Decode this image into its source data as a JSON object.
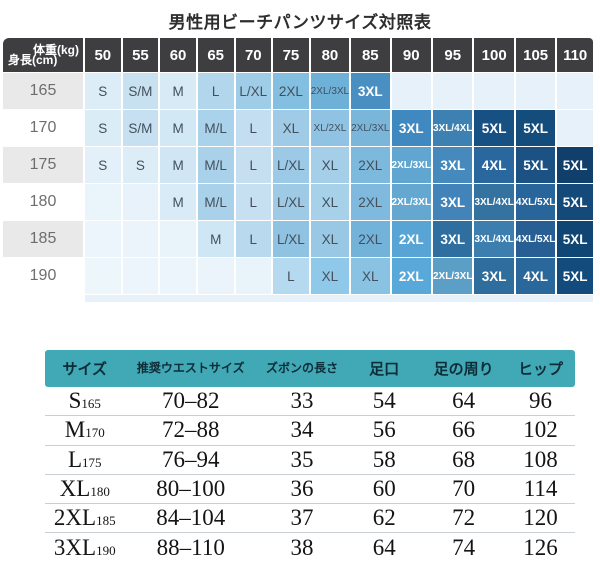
{
  "title": "男性用ビーチパンツサイズ対照表",
  "colors": {
    "header_dark": "#3e3e40",
    "label_alt": "#e9e9e9",
    "teal": "#41a8b5",
    "empty_cell": "#e6f1f9"
  },
  "chart_data": [
    {
      "type": "heatmap",
      "title": "男性用ビーチパンツサイズ対照表",
      "x_label": "体重(kg)",
      "y_label": "身長(cm)",
      "x_ticks": [
        "50",
        "55",
        "60",
        "65",
        "70",
        "75",
        "80",
        "85",
        "90",
        "95",
        "100",
        "105",
        "110"
      ],
      "y_ticks": [
        "165",
        "170",
        "175",
        "180",
        "185",
        "190"
      ],
      "legend": "cell value = recommended size, cell color = light blue (small) to dark navy (large)",
      "cells": [
        [
          [
            "S",
            "#dcedf7",
            "d"
          ],
          [
            "S/M",
            "#c8e1f1",
            "d"
          ],
          [
            "M",
            "#d7eaf6",
            "d"
          ],
          [
            "L",
            "#b2d6ec",
            "d"
          ],
          [
            "L/XL",
            "#9fcce7",
            "d"
          ],
          [
            "2XL",
            "#83bfe0",
            "d"
          ],
          [
            "2XL/3XL",
            "#6db0d8",
            "d"
          ],
          [
            "3XL",
            "#4a8fc2",
            "w"
          ],
          [
            "",
            "#e6f1f9",
            "d"
          ],
          [
            "",
            "#e6f1f9",
            "d"
          ],
          [
            "",
            "#e6f1f9",
            "d"
          ],
          [
            "",
            "#e6f1f9",
            "d"
          ],
          [
            "",
            "#e6f1f9",
            "d"
          ]
        ],
        [
          [
            "S",
            "#daecf6",
            "d"
          ],
          [
            "S/M",
            "#c6e0f1",
            "d"
          ],
          [
            "M",
            "#d3e8f5",
            "d"
          ],
          [
            "M/L",
            "#aad2ea",
            "d"
          ],
          [
            "L",
            "#c2def0",
            "d"
          ],
          [
            "XL",
            "#9fcbe7",
            "d"
          ],
          [
            "XL/2XL",
            "#90c3e3",
            "d"
          ],
          [
            "2XL/3XL",
            "#7ab5da",
            "d"
          ],
          [
            "3XL",
            "#3f88c0",
            "w"
          ],
          [
            "3XL/4XL",
            "#3d80b2",
            "w"
          ],
          [
            "5XL",
            "#175083",
            "w"
          ],
          [
            "5XL",
            "#144c7c",
            "w"
          ],
          [
            "",
            "#e6f1f9",
            "d"
          ]
        ],
        [
          [
            "S",
            "#e3f0f9",
            "d"
          ],
          [
            "S",
            "#ddedf7",
            "d"
          ],
          [
            "M",
            "#d0e6f4",
            "d"
          ],
          [
            "M/L",
            "#a9d1e9",
            "d"
          ],
          [
            "L",
            "#c5dff1",
            "d"
          ],
          [
            "L/XL",
            "#9cc9e6",
            "d"
          ],
          [
            "XL",
            "#a5cfe9",
            "d"
          ],
          [
            "2XL",
            "#7db9dd",
            "d"
          ],
          [
            "2XL/3XL",
            "#61a6d1",
            "w"
          ],
          [
            "3XL",
            "#4689bd",
            "w"
          ],
          [
            "4XL",
            "#29679e",
            "w"
          ],
          [
            "5XL",
            "#1b5283",
            "w"
          ],
          [
            "5XL",
            "#113f6b",
            "w"
          ]
        ],
        [
          [
            "",
            "#e9f4fb",
            "d"
          ],
          [
            "",
            "#e7f2fa",
            "d"
          ],
          [
            "M",
            "#d9ebf6",
            "d"
          ],
          [
            "M/L",
            "#a9d1e9",
            "d"
          ],
          [
            "L",
            "#c6e0f1",
            "d"
          ],
          [
            "L/XL",
            "#9ecae6",
            "d"
          ],
          [
            "XL",
            "#a7d0e9",
            "d"
          ],
          [
            "2XL",
            "#7fbade",
            "d"
          ],
          [
            "2XL/3XL",
            "#64a8d2",
            "w"
          ],
          [
            "3XL",
            "#4284ba",
            "w"
          ],
          [
            "3XL/4XL",
            "#34729f",
            "w"
          ],
          [
            "4XL/5XL",
            "#28659b",
            "w"
          ],
          [
            "5XL",
            "#134a79",
            "w"
          ]
        ],
        [
          [
            "",
            "#ebf5fb",
            "d"
          ],
          [
            "",
            "#eaf4fa",
            "d"
          ],
          [
            "",
            "#e8f3fa",
            "d"
          ],
          [
            "M",
            "#cfe6f4",
            "d"
          ],
          [
            "L",
            "#b9d9ee",
            "d"
          ],
          [
            "L/XL",
            "#90c2e2",
            "d"
          ],
          [
            "XL",
            "#99c8e5",
            "d"
          ],
          [
            "2XL",
            "#73b3d9",
            "d"
          ],
          [
            "2XL",
            "#57a4d5",
            "w"
          ],
          [
            "3XL",
            "#2e6f9f",
            "w"
          ],
          [
            "3XL/4XL",
            "#3c7fae",
            "w"
          ],
          [
            "4XL/5XL",
            "#275f94",
            "w"
          ],
          [
            "5XL",
            "#0f4674",
            "w"
          ]
        ],
        [
          [
            "",
            "#edf6fb",
            "d"
          ],
          [
            "",
            "#ecf5fb",
            "d"
          ],
          [
            "",
            "#ebf5fb",
            "d"
          ],
          [
            "",
            "#eaf4fa",
            "d"
          ],
          [
            "",
            "#e9f4fa",
            "d"
          ],
          [
            "L",
            "#b5d9ee",
            "d"
          ],
          [
            "XL",
            "#8fc8e8",
            "d"
          ],
          [
            "XL",
            "#8ac2e4",
            "d"
          ],
          [
            "2XL",
            "#58a8da",
            "w"
          ],
          [
            "2XL/3XL",
            "#5c9fc6",
            "w"
          ],
          [
            "3XL",
            "#2f6d9d",
            "w"
          ],
          [
            "4XL",
            "#2a689c",
            "w"
          ],
          [
            "5XL",
            "#124b7c",
            "w"
          ]
        ]
      ]
    },
    {
      "type": "table",
      "headers": [
        "サイズ",
        "推奨ウエストサイズ",
        "ズボンの長さ",
        "足口",
        "足の周り",
        "ヒップ"
      ],
      "rows": [
        {
          "size": "S",
          "height": "165",
          "values": [
            "70–82",
            "33",
            "54",
            "64",
            "96"
          ]
        },
        {
          "size": "M",
          "height": "170",
          "values": [
            "72–88",
            "34",
            "56",
            "66",
            "102"
          ]
        },
        {
          "size": "L",
          "height": "175",
          "values": [
            "76–94",
            "35",
            "58",
            "68",
            "108"
          ]
        },
        {
          "size": "XL",
          "height": "180",
          "values": [
            "80–100",
            "36",
            "60",
            "70",
            "114"
          ]
        },
        {
          "size": "2XL",
          "height": "185",
          "values": [
            "84–104",
            "37",
            "62",
            "72",
            "120"
          ]
        },
        {
          "size": "3XL",
          "height": "190",
          "values": [
            "88–110",
            "38",
            "64",
            "74",
            "126"
          ]
        }
      ]
    }
  ]
}
